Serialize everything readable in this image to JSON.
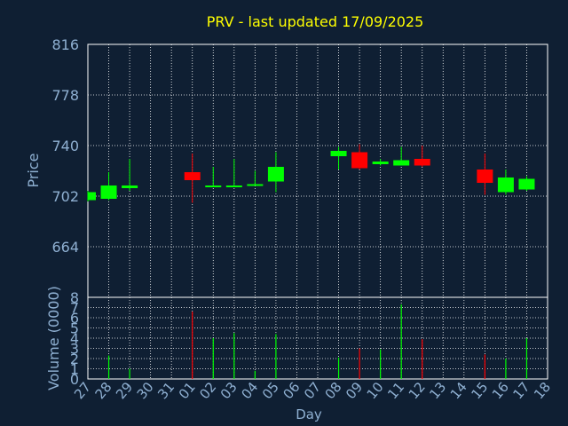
{
  "chart_data": [
    {
      "type": "candlestick",
      "title": "PRV - last updated 17/09/2025",
      "ylabel": "Price",
      "ylim": [
        626,
        816
      ],
      "yticks": [
        664,
        702,
        740,
        778,
        816
      ],
      "grid": true,
      "categories": [
        "27",
        "28",
        "29",
        "30",
        "31",
        "01",
        "02",
        "03",
        "04",
        "05",
        "06",
        "07",
        "08",
        "09",
        "10",
        "11",
        "12",
        "13",
        "14",
        "15",
        "16",
        "17",
        "18"
      ],
      "candles": [
        {
          "day": "27",
          "open": 699,
          "close": 705,
          "high": 706,
          "low": 698
        },
        {
          "day": "28",
          "open": 700,
          "close": 710,
          "high": 720,
          "low": 699
        },
        {
          "day": "29",
          "open": 708,
          "close": 710,
          "high": 730,
          "low": 706
        },
        {
          "day": "01",
          "open": 720,
          "close": 714,
          "high": 734,
          "low": 697
        },
        {
          "day": "02",
          "open": 709,
          "close": 710,
          "high": 724,
          "low": 709
        },
        {
          "day": "03",
          "open": 709,
          "close": 710,
          "high": 730,
          "low": 709
        },
        {
          "day": "04",
          "open": 710,
          "close": 711,
          "high": 721,
          "low": 710
        },
        {
          "day": "05",
          "open": 713,
          "close": 724,
          "high": 735,
          "low": 705
        },
        {
          "day": "08",
          "open": 732,
          "close": 736,
          "high": 739,
          "low": 722
        },
        {
          "day": "09",
          "open": 735,
          "close": 723,
          "high": 741,
          "low": 722
        },
        {
          "day": "10",
          "open": 726,
          "close": 728,
          "high": 730,
          "low": 725
        },
        {
          "day": "11",
          "open": 725,
          "close": 729,
          "high": 739,
          "low": 725
        },
        {
          "day": "12",
          "open": 730,
          "close": 725,
          "high": 740,
          "low": 724
        },
        {
          "day": "15",
          "open": 722,
          "close": 712,
          "high": 734,
          "low": 703
        },
        {
          "day": "16",
          "open": 705,
          "close": 716,
          "high": 722,
          "low": 703
        },
        {
          "day": "17",
          "open": 707,
          "close": 715,
          "high": 717,
          "low": 706
        }
      ]
    },
    {
      "type": "bar",
      "ylabel": "Volume (0000)",
      "xlabel": "Day",
      "ylim": [
        0,
        8
      ],
      "yticks": [
        0,
        1,
        2,
        3,
        4,
        5,
        6,
        7,
        8
      ],
      "grid": true,
      "categories": [
        "27",
        "28",
        "29",
        "30",
        "31",
        "01",
        "02",
        "03",
        "04",
        "05",
        "06",
        "07",
        "08",
        "09",
        "10",
        "11",
        "12",
        "13",
        "14",
        "15",
        "16",
        "17",
        "18"
      ],
      "volumes": [
        {
          "day": "28",
          "value": 2.3,
          "direction": "up"
        },
        {
          "day": "29",
          "value": 1.0,
          "direction": "up"
        },
        {
          "day": "01",
          "value": 6.6,
          "direction": "down"
        },
        {
          "day": "02",
          "value": 4.0,
          "direction": "up"
        },
        {
          "day": "03",
          "value": 4.5,
          "direction": "up"
        },
        {
          "day": "04",
          "value": 0.8,
          "direction": "up"
        },
        {
          "day": "05",
          "value": 4.4,
          "direction": "up"
        },
        {
          "day": "08",
          "value": 2.1,
          "direction": "up"
        },
        {
          "day": "09",
          "value": 3.0,
          "direction": "down"
        },
        {
          "day": "10",
          "value": 2.9,
          "direction": "up"
        },
        {
          "day": "11",
          "value": 7.3,
          "direction": "up"
        },
        {
          "day": "12",
          "value": 3.9,
          "direction": "down"
        },
        {
          "day": "15",
          "value": 2.4,
          "direction": "down"
        },
        {
          "day": "16",
          "value": 2.0,
          "direction": "up"
        },
        {
          "day": "17",
          "value": 4.0,
          "direction": "up"
        }
      ]
    }
  ],
  "colors": {
    "background": "#0f1f33",
    "title": "#ffff00",
    "axis_text": "#8fb0d2",
    "frame": "#ffffff",
    "up": "#00ff00",
    "down": "#ff0000"
  }
}
